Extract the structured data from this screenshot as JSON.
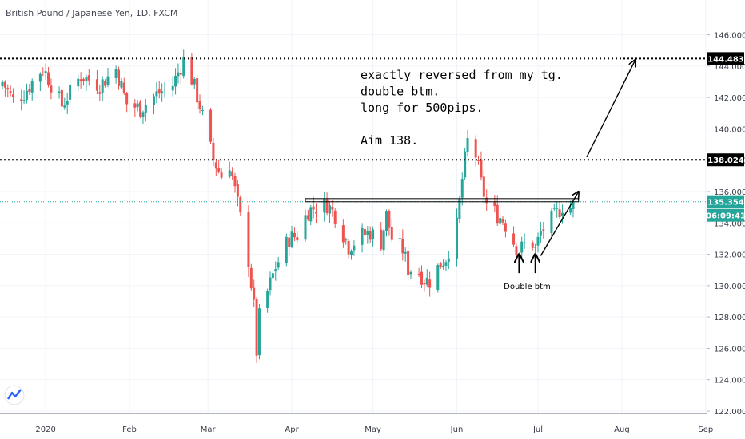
{
  "symbol_title": "British Pound / Japanese Yen, 1D, FXCM",
  "logo_icon": "tradingview-logo-icon",
  "colors": {
    "up": "#26a69a",
    "down": "#ef5350",
    "current_line": "#26a69a",
    "label_bg": "#000000"
  },
  "annotation": {
    "lines": [
      "exactly reversed from my tg.",
      "double btm.",
      "long for 500pips.",
      "",
      "Aim 138."
    ],
    "double_btm_label": "Double btm"
  },
  "price_labels": {
    "upper": "144.483",
    "target": "138.024",
    "current": "135.354",
    "countdown": "06:09:41"
  },
  "chart_data": {
    "type": "candlestick",
    "title": "British Pound / Japanese Yen, 1D, FXCM",
    "y_ticks": [
      "146.000",
      "144.000",
      "142.000",
      "140.000",
      "138.000",
      "136.000",
      "134.000",
      "132.000",
      "130.000",
      "128.000",
      "126.000",
      "124.000",
      "122.000"
    ],
    "x_ticks": [
      "2020",
      "Feb",
      "Mar",
      "Apr",
      "May",
      "Jun",
      "Jul",
      "Aug",
      "Sep"
    ],
    "ylim": [
      122,
      147.2
    ],
    "horizontal_levels": [
      144.483,
      138.024
    ],
    "current_price": 135.354,
    "resistance_band": [
      135.35,
      135.55
    ],
    "anchors": [
      [
        "2019-12-16",
        143.0
      ],
      [
        "2019-12-20",
        141.8
      ],
      [
        "2019-12-24",
        142.3
      ],
      [
        "2019-12-31",
        143.9
      ],
      [
        "2020-01-07",
        141.5
      ],
      [
        "2020-01-14",
        143.4
      ],
      [
        "2020-01-21",
        142.8
      ],
      [
        "2020-01-27",
        143.8
      ],
      [
        "2020-01-31",
        141.6
      ],
      [
        "2020-02-05",
        141.3
      ],
      [
        "2020-02-11",
        142.2
      ],
      [
        "2020-02-17",
        142.8
      ],
      [
        "2020-02-21",
        144.4
      ],
      [
        "2020-02-24",
        143.2
      ],
      [
        "2020-02-27",
        141.5
      ],
      [
        "2020-03-03",
        138.0
      ],
      [
        "2020-03-06",
        137.0
      ],
      [
        "2020-03-09",
        137.8
      ],
      [
        "2020-03-12",
        135.2
      ],
      [
        "2020-03-16",
        131.6
      ],
      [
        "2020-03-18",
        128.6
      ],
      [
        "2020-03-19",
        125.8
      ],
      [
        "2020-03-20",
        128.0
      ],
      [
        "2020-03-23",
        129.6
      ],
      [
        "2020-03-26",
        131.2
      ],
      [
        "2020-03-31",
        133.0
      ],
      [
        "2020-04-03",
        133.2
      ],
      [
        "2020-04-07",
        134.8
      ],
      [
        "2020-04-10",
        135.0
      ],
      [
        "2020-04-14",
        135.2
      ],
      [
        "2020-04-17",
        134.5
      ],
      [
        "2020-04-22",
        132.5
      ],
      [
        "2020-04-27",
        133.2
      ],
      [
        "2020-04-30",
        133.4
      ],
      [
        "2020-05-04",
        132.8
      ],
      [
        "2020-05-06",
        134.5
      ],
      [
        "2020-05-08",
        133.0
      ],
      [
        "2020-05-12",
        132.3
      ],
      [
        "2020-05-14",
        131.1
      ],
      [
        "2020-05-18",
        130.9
      ],
      [
        "2020-05-20",
        130.4
      ],
      [
        "2020-05-22",
        130.3
      ],
      [
        "2020-05-26",
        131.4
      ],
      [
        "2020-05-28",
        131.8
      ],
      [
        "2020-06-01",
        133.8
      ],
      [
        "2020-06-03",
        136.8
      ],
      [
        "2020-06-05",
        139.2
      ],
      [
        "2020-06-08",
        138.3
      ],
      [
        "2020-06-10",
        136.5
      ],
      [
        "2020-06-12",
        135.2
      ],
      [
        "2020-06-16",
        134.5
      ],
      [
        "2020-06-18",
        134.2
      ],
      [
        "2020-06-22",
        132.8
      ],
      [
        "2020-06-24",
        132.2
      ],
      [
        "2020-06-26",
        132.6
      ],
      [
        "2020-06-29",
        132.7
      ],
      [
        "2020-06-30",
        132.3
      ],
      [
        "2020-07-02",
        133.4
      ],
      [
        "2020-07-06",
        134.2
      ],
      [
        "2020-07-08",
        134.6
      ],
      [
        "2020-07-10",
        135.1
      ],
      [
        "2020-07-13",
        135.0
      ],
      [
        "2020-07-14",
        135.354
      ]
    ],
    "candle_count": 149
  }
}
